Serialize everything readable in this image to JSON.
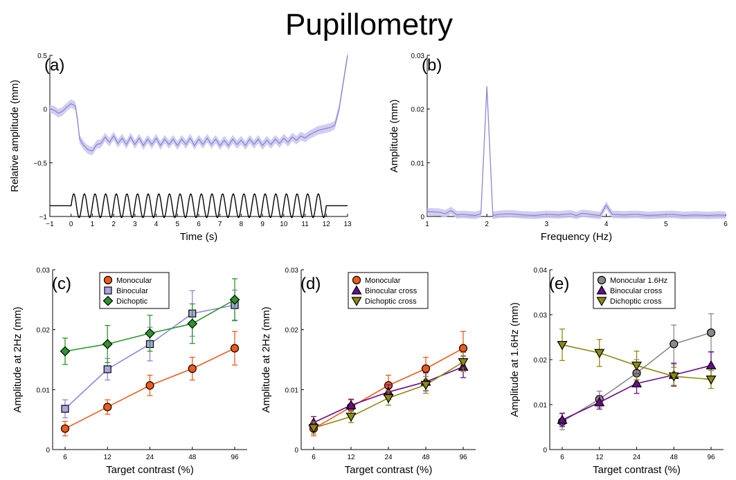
{
  "figure": {
    "title": "Pupillometry"
  },
  "colors": {
    "trace": "#8a85d6",
    "band": "#c9c6ee",
    "monocular": "#ef5a1a",
    "binocular": "#8a85d6",
    "binocular_fill": "#aaa6e2",
    "dichoptic": "#2a962a",
    "binocular_cross": "#6a0a8a",
    "dichoptic_cross": "#8a8a10",
    "monocular16": "#8a8a8a"
  },
  "chart_data": [
    {
      "id": "a",
      "panel_label": "(a)",
      "type": "line",
      "xlabel": "Time (s)",
      "ylabel": "Relative amplitude (mm)",
      "xlim": [
        -1,
        13
      ],
      "ylim": [
        -1,
        0.5
      ],
      "xticks": [
        "−1",
        "0",
        "1",
        "2",
        "3",
        "4",
        "5",
        "6",
        "7",
        "8",
        "9",
        "10",
        "11",
        "12",
        "13"
      ],
      "yticks": [
        "−1",
        "−0.5",
        "0",
        "0.5"
      ],
      "series": [
        {
          "x": [
            -1,
            -0.8,
            -0.6,
            -0.4,
            -0.2,
            0,
            0.2,
            0.3,
            0.4,
            0.6,
            0.8,
            1,
            1.2,
            1.4,
            1.6,
            1.8,
            2,
            2.2,
            2.4,
            2.6,
            2.8,
            3,
            3.2,
            3.4,
            3.6,
            3.8,
            4,
            4.2,
            4.4,
            4.6,
            4.8,
            5,
            5.2,
            5.4,
            5.6,
            5.8,
            6,
            6.2,
            6.4,
            6.6,
            6.8,
            7,
            7.2,
            7.4,
            7.6,
            7.8,
            8,
            8.2,
            8.4,
            8.6,
            8.8,
            9,
            9.2,
            9.4,
            9.6,
            9.8,
            10,
            10.2,
            10.4,
            10.6,
            10.8,
            11,
            11.2,
            11.4,
            11.6,
            11.8,
            12,
            12.2,
            12.4,
            12.6,
            12.8,
            13
          ],
          "y": [
            0,
            -0.01,
            -0.04,
            -0.02,
            0.02,
            0.05,
            0.03,
            -0.1,
            -0.28,
            -0.34,
            -0.38,
            -0.39,
            -0.33,
            -0.32,
            -0.26,
            -0.31,
            -0.25,
            -0.32,
            -0.27,
            -0.33,
            -0.26,
            -0.33,
            -0.27,
            -0.34,
            -0.28,
            -0.33,
            -0.27,
            -0.34,
            -0.28,
            -0.33,
            -0.28,
            -0.34,
            -0.28,
            -0.33,
            -0.27,
            -0.34,
            -0.28,
            -0.33,
            -0.27,
            -0.33,
            -0.28,
            -0.34,
            -0.29,
            -0.34,
            -0.28,
            -0.33,
            -0.29,
            -0.34,
            -0.28,
            -0.33,
            -0.28,
            -0.34,
            -0.29,
            -0.33,
            -0.28,
            -0.32,
            -0.27,
            -0.31,
            -0.26,
            -0.29,
            -0.25,
            -0.27,
            -0.24,
            -0.22,
            -0.2,
            -0.19,
            -0.18,
            -0.17,
            -0.15,
            0.0,
            0.25,
            0.5
          ],
          "err": 0.04
        }
      ],
      "stimulus": {
        "y_center": -0.9,
        "amplitude": 0.11,
        "frequency_hz": 2,
        "start": 0,
        "end": 12
      }
    },
    {
      "id": "b",
      "panel_label": "(b)",
      "type": "line",
      "xlabel": "Frequency (Hz)",
      "ylabel": "Amplitude (mm)",
      "xlim": [
        1,
        6
      ],
      "ylim": [
        0,
        0.03
      ],
      "xticks": [
        "1",
        "2",
        "3",
        "4",
        "5",
        "6"
      ],
      "yticks": [
        "0",
        "0.01",
        "0.02",
        "0.03"
      ],
      "series": [
        {
          "x": [
            1,
            1.2,
            1.3,
            1.4,
            1.5,
            1.6,
            1.7,
            1.8,
            1.9,
            2,
            2.1,
            2.2,
            2.4,
            2.6,
            2.8,
            3,
            3.2,
            3.4,
            3.5,
            3.6,
            3.8,
            3.9,
            4,
            4.1,
            4.3,
            4.5,
            4.7,
            4.9,
            5.1,
            5.3,
            5.5,
            5.7,
            5.9,
            6
          ],
          "y": [
            0.0009,
            0.0008,
            0.0005,
            0.0011,
            0.0003,
            0.0004,
            0.0003,
            0.0002,
            0.0005,
            0.0242,
            0.0002,
            0.0004,
            0.0005,
            0.0003,
            0.0002,
            0.0004,
            0.0003,
            0.0005,
            0.0002,
            0.0006,
            0.0003,
            0.0002,
            0.0021,
            0.0004,
            0.0003,
            0.0004,
            0.0002,
            0.0003,
            0.0004,
            0.0002,
            0.0003,
            0.0002,
            0.0003,
            0.0002
          ],
          "err": 0.0007
        }
      ]
    },
    {
      "id": "c",
      "panel_label": "(c)",
      "type": "line",
      "xlabel": "Target contrast (%)",
      "ylabel": "Amplitude at 2Hz (mm)",
      "categories": [
        "6",
        "12",
        "24",
        "48",
        "96"
      ],
      "ylim": [
        0,
        0.03
      ],
      "yticks": [
        "0",
        "0.01",
        "0.02",
        "0.03"
      ],
      "legend": "top-right",
      "series": [
        {
          "name": "Monocular",
          "color_key": "monocular",
          "marker": "circle",
          "values": [
            0.0035,
            0.0071,
            0.0107,
            0.0135,
            0.0169
          ],
          "err": [
            0.0012,
            0.0012,
            0.0017,
            0.0019,
            0.0028
          ]
        },
        {
          "name": "Binocular",
          "color_key": "binocular",
          "marker": "square",
          "values": [
            0.0068,
            0.0134,
            0.0176,
            0.0227,
            0.0241
          ],
          "err": [
            0.0015,
            0.0018,
            0.0028,
            0.0038,
            0.0025
          ]
        },
        {
          "name": "Dichoptic",
          "color_key": "dichoptic",
          "marker": "diamond",
          "values": [
            0.0164,
            0.0176,
            0.0194,
            0.021,
            0.025
          ],
          "err": [
            0.0022,
            0.0031,
            0.003,
            0.0033,
            0.0035
          ]
        }
      ]
    },
    {
      "id": "d",
      "panel_label": "(d)",
      "type": "line",
      "xlabel": "Target contrast (%)",
      "ylabel": "Amplitude at 2Hz (mm)",
      "categories": [
        "6",
        "12",
        "24",
        "48",
        "96"
      ],
      "ylim": [
        0,
        0.03
      ],
      "yticks": [
        "0",
        "0.01",
        "0.02",
        "0.03"
      ],
      "legend": "top-right",
      "series": [
        {
          "name": "Monocular",
          "color_key": "monocular",
          "marker": "circle",
          "values": [
            0.0035,
            0.0071,
            0.0107,
            0.0135,
            0.0169
          ],
          "err": [
            0.0012,
            0.0012,
            0.0017,
            0.0019,
            0.0028
          ]
        },
        {
          "name": "Binocular cross",
          "color_key": "binocular_cross",
          "marker": "triangle",
          "values": [
            0.0045,
            0.0074,
            0.0096,
            0.0113,
            0.0138
          ],
          "err": [
            0.001,
            0.001,
            0.0012,
            0.0015,
            0.0018
          ]
        },
        {
          "name": "Dichoptic cross",
          "color_key": "dichoptic_cross",
          "marker": "triangle-down",
          "values": [
            0.0036,
            0.0055,
            0.0086,
            0.0108,
            0.0146
          ],
          "err": [
            0.001,
            0.001,
            0.0012,
            0.0014,
            0.0016
          ]
        }
      ]
    },
    {
      "id": "e",
      "panel_label": "(e)",
      "type": "line",
      "xlabel": "Target contrast (%)",
      "ylabel": "Amplitude at 1.6Hz (mm)",
      "categories": [
        "6",
        "12",
        "24",
        "48",
        "96"
      ],
      "ylim": [
        0,
        0.04
      ],
      "yticks": [
        "0",
        "0.01",
        "0.02",
        "0.03",
        "0.04"
      ],
      "legend": "top-right",
      "series": [
        {
          "name": "Monocular 1.6Hz",
          "color_key": "monocular16",
          "marker": "circle",
          "values": [
            0.0062,
            0.0112,
            0.017,
            0.0235,
            0.026
          ],
          "err": [
            0.0018,
            0.0018,
            0.003,
            0.0042,
            0.0042
          ]
        },
        {
          "name": "Binocular cross",
          "color_key": "binocular_cross",
          "marker": "triangle",
          "values": [
            0.0066,
            0.0105,
            0.0147,
            0.0166,
            0.0187
          ],
          "err": [
            0.0015,
            0.0015,
            0.0022,
            0.0025,
            0.003
          ]
        },
        {
          "name": "Dichoptic cross",
          "color_key": "dichoptic_cross",
          "marker": "triangle-down",
          "values": [
            0.0233,
            0.0215,
            0.0187,
            0.0163,
            0.0156
          ],
          "err": [
            0.0035,
            0.003,
            0.0032,
            0.002,
            0.002
          ]
        }
      ]
    }
  ]
}
